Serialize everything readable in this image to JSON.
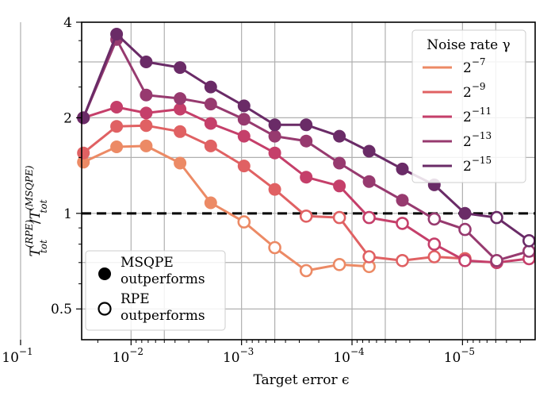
{
  "chart_data": {
    "type": "line",
    "xscale": "log-reversed",
    "yscale": "log2",
    "xlim": [
      0.028,
      2.2e-06
    ],
    "ylim": [
      0.4,
      4.0
    ],
    "grid": true,
    "xlabel": "Target error ϵ",
    "ylabel": {
      "base1": "T",
      "sup1": "(RPE)",
      "sub1": "tot",
      "slash": "/",
      "base2": "T",
      "sup2": "(MSQPE)",
      "sub2": "tot"
    },
    "x_ticks": [
      {
        "value": 0.1,
        "base": "10",
        "exp": "−1"
      },
      {
        "value": 0.01,
        "base": "10",
        "exp": "−2"
      },
      {
        "value": 0.001,
        "base": "10",
        "exp": "−3"
      },
      {
        "value": 0.0001,
        "base": "10",
        "exp": "−4"
      },
      {
        "value": 1e-05,
        "base": "10",
        "exp": "−5"
      }
    ],
    "y_ticks": [
      {
        "value": 0.5,
        "label": "0.5"
      },
      {
        "value": 1,
        "label": "1"
      },
      {
        "value": 2,
        "label": "2"
      },
      {
        "value": 4,
        "label": "4"
      }
    ],
    "reference_line": {
      "y": 1,
      "style": "dashed",
      "color": "#000000"
    },
    "legend": {
      "title": "Noise rate γ",
      "position": "top-right",
      "entries": [
        {
          "base": "2",
          "exp": "−7"
        },
        {
          "base": "2",
          "exp": "−9"
        },
        {
          "base": "2",
          "exp": "−11"
        },
        {
          "base": "2",
          "exp": "−13"
        },
        {
          "base": "2",
          "exp": "−15"
        }
      ]
    },
    "marker_legend": {
      "position": "bottom-left",
      "entries": [
        {
          "marker": "filled",
          "line1": "MSQPE",
          "line2": "outperforms"
        },
        {
          "marker": "hollow",
          "line1": "RPE",
          "line2": "outperforms"
        }
      ]
    },
    "series": [
      {
        "name": "2^-7",
        "color": "#ec8a65",
        "x": [
          0.027,
          0.0135,
          0.0073,
          0.0036,
          0.0019,
          0.00095,
          0.0005,
          0.00026,
          0.00013,
          7e-05
        ],
        "y": [
          1.45,
          1.62,
          1.63,
          1.44,
          1.08,
          0.94,
          0.78,
          0.66,
          0.69,
          0.68
        ]
      },
      {
        "name": "2^-9",
        "color": "#e06163",
        "x": [
          0.027,
          0.0135,
          0.0073,
          0.0036,
          0.0019,
          0.00095,
          0.0005,
          0.00026,
          0.00013,
          7e-05,
          3.5e-05,
          1.8e-05,
          9.5e-06
        ],
        "y": [
          1.55,
          1.88,
          1.89,
          1.81,
          1.63,
          1.41,
          1.19,
          0.98,
          0.97,
          0.73,
          0.71,
          0.73,
          0.72
        ]
      },
      {
        "name": "2^-11",
        "color": "#c53f6a",
        "x": [
          0.027,
          0.0135,
          0.0073,
          0.0036,
          0.0019,
          0.00095,
          0.0005,
          0.00026,
          0.00013,
          7e-05,
          3.5e-05,
          1.8e-05,
          9.5e-06,
          4.9e-06,
          2.5e-06
        ],
        "y": [
          2.0,
          2.16,
          2.07,
          2.13,
          1.92,
          1.75,
          1.55,
          1.3,
          1.22,
          0.97,
          0.93,
          0.8,
          0.71,
          0.7,
          0.72
        ]
      },
      {
        "name": "2^-13",
        "color": "#973a6f",
        "x": [
          0.027,
          0.0135,
          0.0073,
          0.0036,
          0.0019,
          0.00095,
          0.0005,
          0.00026,
          0.00013,
          7e-05,
          3.5e-05,
          1.8e-05,
          9.5e-06,
          4.9e-06,
          2.5e-06
        ],
        "y": [
          2.0,
          3.53,
          2.36,
          2.3,
          2.21,
          1.98,
          1.75,
          1.69,
          1.44,
          1.26,
          1.1,
          0.96,
          0.89,
          0.71,
          0.76
        ]
      },
      {
        "name": "2^-15",
        "color": "#6a2b67",
        "x": [
          0.027,
          0.0135,
          0.0073,
          0.0036,
          0.0019,
          0.00095,
          0.0005,
          0.00026,
          0.00013,
          7e-05,
          3.5e-05,
          1.8e-05,
          9.5e-06,
          4.9e-06,
          2.5e-06
        ],
        "y": [
          2.0,
          3.67,
          3.0,
          2.88,
          2.5,
          2.18,
          1.9,
          1.9,
          1.75,
          1.57,
          1.38,
          1.23,
          1.0,
          0.97,
          0.82
        ]
      }
    ]
  }
}
